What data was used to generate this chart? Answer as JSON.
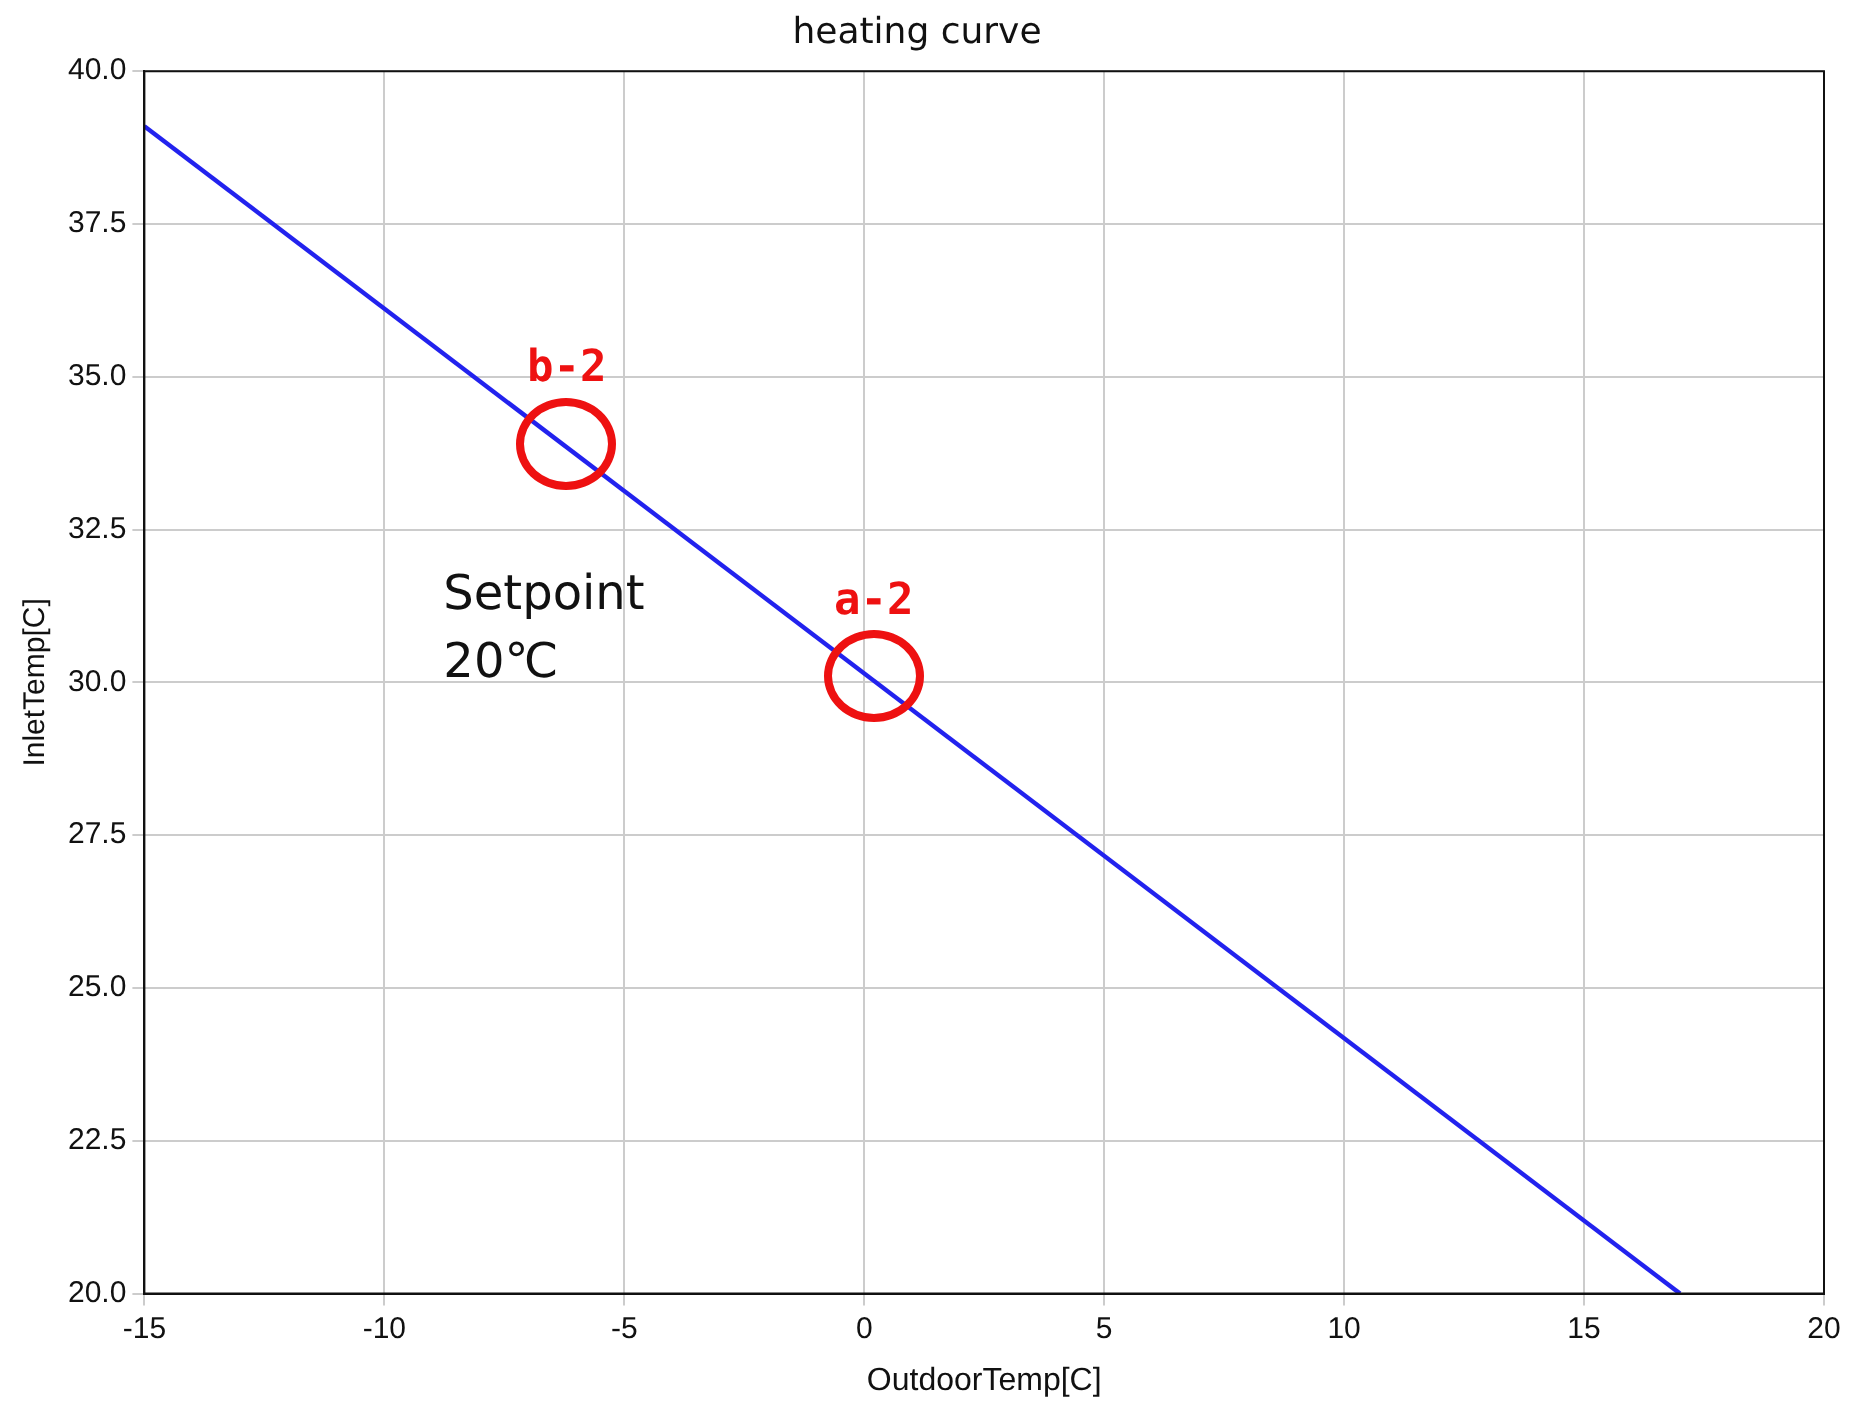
{
  "chart_data": {
    "type": "line",
    "title": "heating curve",
    "xlabel": "OutdoorTemp[C]",
    "ylabel": "InletTemp[C]",
    "x": [
      -15,
      17
    ],
    "series": [
      {
        "color": "#2222ee",
        "values": [
          39.1,
          20
        ]
      }
    ],
    "xlim": [
      -15,
      20
    ],
    "xticks": [
      -15,
      -10,
      -5,
      0,
      5,
      10,
      15,
      20
    ],
    "ylim": [
      20,
      40
    ],
    "yticks": [
      {
        "value": 20,
        "label": "20.0"
      },
      {
        "value": 22.5,
        "label": "22.5"
      },
      {
        "value": 25,
        "label": "25.0"
      },
      {
        "value": 27.5,
        "label": "27.5"
      },
      {
        "value": 30,
        "label": "30.0"
      },
      {
        "value": 32.5,
        "label": "32.5"
      },
      {
        "value": 35,
        "label": "35.0"
      },
      {
        "value": 37.5,
        "label": "37.5"
      },
      {
        "value": 40,
        "label": "40.0"
      }
    ],
    "grid": true,
    "marker": "none",
    "line_style": "solid",
    "annotations": [
      {
        "text": "b-2",
        "x": -6.2,
        "y": 33.9
      },
      {
        "text": "a-2",
        "x": 0.2,
        "y": 30.1
      },
      "Setpoint\n20℃"
    ]
  }
}
